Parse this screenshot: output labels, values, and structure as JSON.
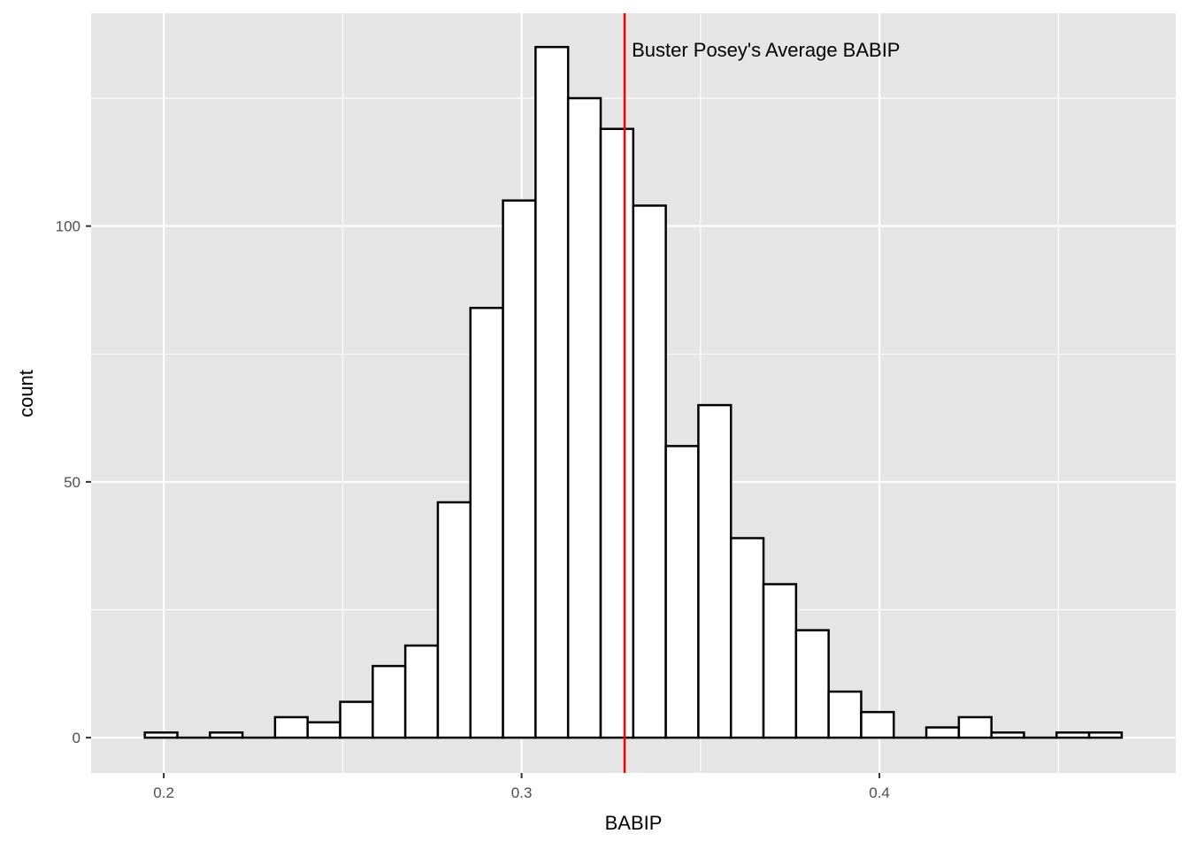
{
  "chart_data": {
    "type": "bar",
    "subtype": "histogram",
    "title": "",
    "xlabel": "BABIP",
    "ylabel": "count",
    "xlim": [
      0.1797,
      0.4828
    ],
    "ylim": [
      -6.9,
      141.6
    ],
    "x_ticks": [
      {
        "value": 0.2,
        "label": "0.2"
      },
      {
        "value": 0.3,
        "label": "0.3"
      },
      {
        "value": 0.4,
        "label": "0.4"
      }
    ],
    "y_ticks": [
      {
        "value": 0,
        "label": "0"
      },
      {
        "value": 50,
        "label": "50"
      },
      {
        "value": 100,
        "label": "100"
      }
    ],
    "x_minor_breaks": [
      0.25,
      0.35,
      0.45
    ],
    "y_minor_breaks": [
      25,
      75,
      125
    ],
    "bin_width": 0.0091,
    "bins": [
      {
        "x0": 0.1947,
        "x1": 0.2038,
        "count": 1
      },
      {
        "x0": 0.2038,
        "x1": 0.2129,
        "count": 0
      },
      {
        "x0": 0.2129,
        "x1": 0.222,
        "count": 1
      },
      {
        "x0": 0.222,
        "x1": 0.2311,
        "count": 0
      },
      {
        "x0": 0.2311,
        "x1": 0.2402,
        "count": 4
      },
      {
        "x0": 0.2402,
        "x1": 0.2493,
        "count": 3
      },
      {
        "x0": 0.2493,
        "x1": 0.2584,
        "count": 7
      },
      {
        "x0": 0.2584,
        "x1": 0.2675,
        "count": 14
      },
      {
        "x0": 0.2675,
        "x1": 0.2766,
        "count": 18
      },
      {
        "x0": 0.2766,
        "x1": 0.2857,
        "count": 46
      },
      {
        "x0": 0.2857,
        "x1": 0.2948,
        "count": 84
      },
      {
        "x0": 0.2948,
        "x1": 0.3039,
        "count": 105
      },
      {
        "x0": 0.3039,
        "x1": 0.313,
        "count": 135
      },
      {
        "x0": 0.313,
        "x1": 0.3221,
        "count": 125
      },
      {
        "x0": 0.3221,
        "x1": 0.3312,
        "count": 119
      },
      {
        "x0": 0.3312,
        "x1": 0.3403,
        "count": 104
      },
      {
        "x0": 0.3403,
        "x1": 0.3494,
        "count": 57
      },
      {
        "x0": 0.3494,
        "x1": 0.3585,
        "count": 65
      },
      {
        "x0": 0.3585,
        "x1": 0.3676,
        "count": 39
      },
      {
        "x0": 0.3676,
        "x1": 0.3767,
        "count": 30
      },
      {
        "x0": 0.3767,
        "x1": 0.3858,
        "count": 21
      },
      {
        "x0": 0.3858,
        "x1": 0.3949,
        "count": 9
      },
      {
        "x0": 0.3949,
        "x1": 0.404,
        "count": 5
      },
      {
        "x0": 0.404,
        "x1": 0.4131,
        "count": 0
      },
      {
        "x0": 0.4131,
        "x1": 0.4222,
        "count": 2
      },
      {
        "x0": 0.4222,
        "x1": 0.4313,
        "count": 4
      },
      {
        "x0": 0.4313,
        "x1": 0.4404,
        "count": 1
      },
      {
        "x0": 0.4404,
        "x1": 0.4495,
        "count": 0
      },
      {
        "x0": 0.4495,
        "x1": 0.4586,
        "count": 1
      },
      {
        "x0": 0.4586,
        "x1": 0.4677,
        "count": 1
      }
    ],
    "reference_line": {
      "x": 0.3288,
      "color": "#ff0000",
      "label": "Buster Posey's Average BABIP"
    },
    "colors": {
      "panel_background": "#e5e5e5",
      "grid": "#ffffff",
      "bar_fill": "#ffffff",
      "bar_outline": "#000000"
    },
    "grid": true,
    "legend": "none"
  }
}
